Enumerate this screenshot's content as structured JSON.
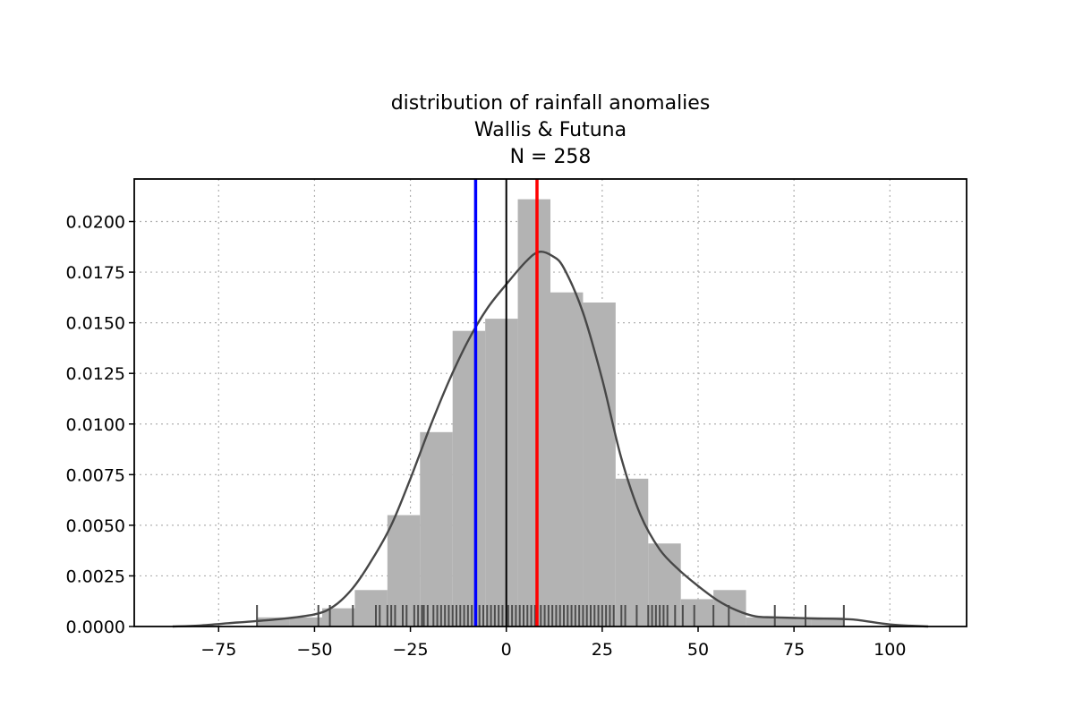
{
  "chart_data": {
    "type": "bar",
    "title_lines": [
      "distribution of rainfall anomalies",
      "Wallis & Futuna",
      "N = 258"
    ],
    "xlabel": "",
    "ylabel": "",
    "xlim": [
      -97,
      120
    ],
    "ylim": [
      0,
      0.0221
    ],
    "xticks": [
      -75,
      -50,
      -25,
      0,
      25,
      50,
      75,
      100
    ],
    "xtick_labels": [
      "−75",
      "−50",
      "−25",
      "0",
      "25",
      "50",
      "75",
      "100"
    ],
    "yticks": [
      0,
      0.0025,
      0.005,
      0.0075,
      0.01,
      0.0125,
      0.015,
      0.0175,
      0.02
    ],
    "ytick_labels": [
      "0.0000",
      "0.0025",
      "0.0050",
      "0.0075",
      "0.0100",
      "0.0125",
      "0.0150",
      "0.0175",
      "0.0200"
    ],
    "grid": true,
    "histogram": {
      "bin_edges": [
        -65,
        -56.5,
        -48,
        -39.5,
        -31,
        -22.5,
        -14,
        -5.5,
        3,
        11.5,
        20,
        28.5,
        37,
        45.5,
        54,
        62.5,
        71,
        79.5,
        88
      ],
      "densities": [
        0.00045,
        0.00045,
        0.0009,
        0.0018,
        0.0055,
        0.0096,
        0.0146,
        0.0152,
        0.0211,
        0.0165,
        0.016,
        0.0073,
        0.0041,
        0.00135,
        0.0018,
        0.00045,
        0.00045,
        0.00045
      ],
      "color": "#b3b3b3"
    },
    "kde": {
      "x": [
        -87,
        -80,
        -70,
        -60,
        -50,
        -45,
        -40,
        -35,
        -30,
        -25,
        -20,
        -15,
        -10,
        -5,
        0,
        5,
        8.5,
        12,
        15,
        20,
        25,
        30,
        35,
        40,
        45,
        50,
        55,
        60,
        65,
        70,
        80,
        90,
        100,
        110
      ],
      "y": [
        0,
        5e-05,
        0.0002,
        0.00035,
        0.0006,
        0.001,
        0.0019,
        0.0033,
        0.005,
        0.0073,
        0.0098,
        0.0121,
        0.0141,
        0.0157,
        0.0169,
        0.018,
        0.0185,
        0.0183,
        0.0177,
        0.0155,
        0.0122,
        0.0083,
        0.0055,
        0.0038,
        0.0028,
        0.002,
        0.0013,
        0.0008,
        0.0005,
        0.00045,
        0.0004,
        0.00035,
        0.0001,
        0
      ],
      "color": "#474747"
    },
    "rug": {
      "values": [
        -65,
        -49,
        -46,
        -40,
        -34,
        -33,
        -31,
        -30,
        -29,
        -27,
        -26,
        -24,
        -23,
        -22,
        -21.5,
        -20.5,
        -19,
        -18,
        -17,
        -16,
        -15,
        -14,
        -13,
        -12,
        -11,
        -10,
        -9,
        -8,
        -7,
        -6,
        -5,
        -4,
        -3,
        -2,
        -1,
        0.5,
        1.5,
        2.5,
        3.5,
        4.5,
        5.5,
        6.5,
        7.5,
        9,
        10,
        11,
        12,
        13,
        14,
        15,
        16,
        17,
        18,
        19,
        20,
        21,
        22,
        23,
        24,
        25,
        26,
        27,
        28,
        30,
        31,
        34,
        37,
        38,
        39,
        40,
        41,
        42,
        44,
        46,
        49,
        54,
        58,
        70,
        78,
        88
      ],
      "color": "#4d4d4d"
    },
    "vlines": [
      {
        "x": -8,
        "color": "#0000ff",
        "width": 3.5
      },
      {
        "x": 0,
        "color": "#000000",
        "width": 2
      },
      {
        "x": 8,
        "color": "#ff0000",
        "width": 3.5
      }
    ]
  }
}
